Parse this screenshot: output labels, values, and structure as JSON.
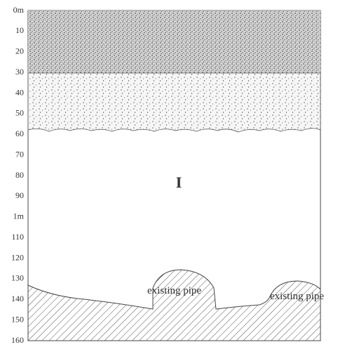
{
  "scale": {
    "labels": [
      "0m",
      "10",
      "20",
      "30",
      "40",
      "50",
      "60",
      "70",
      "80",
      "90",
      "1m",
      "110",
      "120",
      "130",
      "140",
      "150",
      "160"
    ]
  },
  "zone_label": "I",
  "annotations": [
    "existing pipe",
    "existing pipe"
  ]
}
